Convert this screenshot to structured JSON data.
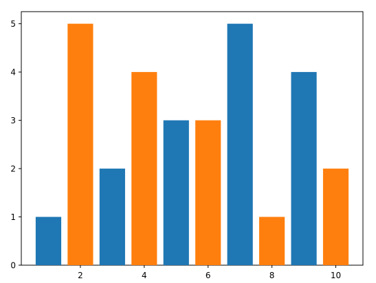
{
  "chart_data": {
    "type": "bar",
    "x": [
      1,
      2,
      3,
      4,
      5,
      6,
      7,
      8,
      9,
      10
    ],
    "values": [
      1,
      5,
      2,
      4,
      3,
      3,
      5,
      1,
      4,
      2
    ],
    "bar_colors": [
      "#1f77b4",
      "#ff7f0e",
      "#1f77b4",
      "#ff7f0e",
      "#1f77b4",
      "#ff7f0e",
      "#1f77b4",
      "#ff7f0e",
      "#1f77b4",
      "#ff7f0e"
    ],
    "title": "",
    "xlabel": "",
    "ylabel": "",
    "xlim": [
      0.15,
      10.85
    ],
    "ylim": [
      0,
      5.25
    ],
    "x_ticks": [
      2,
      4,
      6,
      8,
      10
    ],
    "y_ticks": [
      0,
      1,
      2,
      3,
      4,
      5
    ],
    "grid": false,
    "colors": {
      "blue": "#1f77b4",
      "orange": "#ff7f0e"
    }
  }
}
